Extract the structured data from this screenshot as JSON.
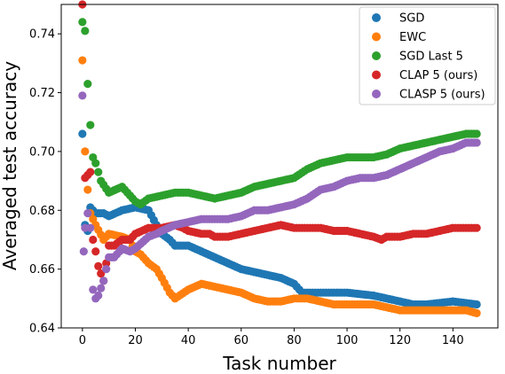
{
  "chart_data": {
    "type": "scatter",
    "title": "",
    "xlabel": "Task number",
    "ylabel": "Averaged test accuracy",
    "xlim": [
      -8,
      157
    ],
    "ylim": [
      0.64,
      0.75
    ],
    "xticks": [
      0,
      20,
      40,
      60,
      80,
      100,
      120,
      140
    ],
    "yticks": [
      0.64,
      0.66,
      0.68,
      0.7,
      0.72,
      0.74
    ],
    "ytick_labels": [
      "0.64",
      "0.66",
      "0.68",
      "0.70",
      "0.72",
      "0.74"
    ],
    "grid": false,
    "legend_position": "top-right",
    "series": [
      {
        "name": "SGD",
        "color": "#1f77b4",
        "keypoints": [
          [
            0,
            0.706
          ],
          [
            1,
            0.675
          ],
          [
            2,
            0.673
          ],
          [
            3,
            0.681
          ],
          [
            5,
            0.679
          ],
          [
            8,
            0.679
          ],
          [
            10,
            0.678
          ],
          [
            15,
            0.68
          ],
          [
            20,
            0.681
          ],
          [
            25,
            0.68
          ],
          [
            28,
            0.675
          ],
          [
            30,
            0.672
          ],
          [
            33,
            0.67
          ],
          [
            35,
            0.668
          ],
          [
            40,
            0.668
          ],
          [
            45,
            0.666
          ],
          [
            50,
            0.664
          ],
          [
            55,
            0.662
          ],
          [
            60,
            0.66
          ],
          [
            65,
            0.659
          ],
          [
            70,
            0.658
          ],
          [
            75,
            0.657
          ],
          [
            80,
            0.655
          ],
          [
            83,
            0.652
          ],
          [
            90,
            0.652
          ],
          [
            100,
            0.652
          ],
          [
            110,
            0.651
          ],
          [
            115,
            0.65
          ],
          [
            120,
            0.649
          ],
          [
            125,
            0.648
          ],
          [
            130,
            0.648
          ],
          [
            140,
            0.649
          ],
          [
            149,
            0.648
          ]
        ]
      },
      {
        "name": "EWC",
        "color": "#ff7f0e",
        "keypoints": [
          [
            0,
            0.731
          ],
          [
            1,
            0.7
          ],
          [
            2,
            0.687
          ],
          [
            3,
            0.679
          ],
          [
            5,
            0.675
          ],
          [
            8,
            0.67
          ],
          [
            10,
            0.672
          ],
          [
            15,
            0.671
          ],
          [
            18,
            0.67
          ],
          [
            20,
            0.666
          ],
          [
            22,
            0.665
          ],
          [
            25,
            0.662
          ],
          [
            28,
            0.66
          ],
          [
            30,
            0.657
          ],
          [
            33,
            0.652
          ],
          [
            35,
            0.65
          ],
          [
            40,
            0.653
          ],
          [
            45,
            0.655
          ],
          [
            50,
            0.654
          ],
          [
            55,
            0.653
          ],
          [
            60,
            0.652
          ],
          [
            65,
            0.65
          ],
          [
            70,
            0.649
          ],
          [
            75,
            0.649
          ],
          [
            80,
            0.65
          ],
          [
            85,
            0.65
          ],
          [
            90,
            0.649
          ],
          [
            95,
            0.648
          ],
          [
            100,
            0.648
          ],
          [
            105,
            0.648
          ],
          [
            110,
            0.648
          ],
          [
            115,
            0.647
          ],
          [
            120,
            0.646
          ],
          [
            125,
            0.646
          ],
          [
            130,
            0.646
          ],
          [
            135,
            0.646
          ],
          [
            140,
            0.646
          ],
          [
            145,
            0.646
          ],
          [
            149,
            0.645
          ]
        ]
      },
      {
        "name": "SGD Last 5",
        "color": "#2ca02c",
        "keypoints": [
          [
            0,
            0.744
          ],
          [
            1,
            0.741
          ],
          [
            2,
            0.723
          ],
          [
            3,
            0.709
          ],
          [
            4,
            0.698
          ],
          [
            5,
            0.696
          ],
          [
            7,
            0.69
          ],
          [
            10,
            0.686
          ],
          [
            15,
            0.688
          ],
          [
            18,
            0.685
          ],
          [
            20,
            0.683
          ],
          [
            22,
            0.682
          ],
          [
            25,
            0.684
          ],
          [
            30,
            0.685
          ],
          [
            35,
            0.686
          ],
          [
            40,
            0.686
          ],
          [
            45,
            0.685
          ],
          [
            50,
            0.684
          ],
          [
            55,
            0.685
          ],
          [
            60,
            0.686
          ],
          [
            65,
            0.688
          ],
          [
            70,
            0.689
          ],
          [
            75,
            0.69
          ],
          [
            80,
            0.691
          ],
          [
            85,
            0.694
          ],
          [
            90,
            0.696
          ],
          [
            95,
            0.697
          ],
          [
            100,
            0.698
          ],
          [
            105,
            0.698
          ],
          [
            110,
            0.698
          ],
          [
            115,
            0.699
          ],
          [
            120,
            0.701
          ],
          [
            125,
            0.702
          ],
          [
            130,
            0.703
          ],
          [
            135,
            0.704
          ],
          [
            140,
            0.705
          ],
          [
            145,
            0.706
          ],
          [
            149,
            0.706
          ]
        ]
      },
      {
        "name": "CLAP 5 (ours)",
        "color": "#d62728",
        "keypoints": [
          [
            0,
            0.75
          ],
          [
            1,
            0.691
          ],
          [
            2,
            0.692
          ],
          [
            3,
            0.693
          ],
          [
            4,
            0.67
          ],
          [
            5,
            0.666
          ],
          [
            6,
            0.661
          ],
          [
            8,
            0.656
          ],
          [
            10,
            0.668
          ],
          [
            12,
            0.668
          ],
          [
            15,
            0.67
          ],
          [
            18,
            0.67
          ],
          [
            20,
            0.672
          ],
          [
            25,
            0.674
          ],
          [
            30,
            0.674
          ],
          [
            35,
            0.675
          ],
          [
            38,
            0.674
          ],
          [
            40,
            0.673
          ],
          [
            45,
            0.672
          ],
          [
            48,
            0.672
          ],
          [
            50,
            0.671
          ],
          [
            55,
            0.671
          ],
          [
            60,
            0.672
          ],
          [
            65,
            0.673
          ],
          [
            70,
            0.674
          ],
          [
            75,
            0.675
          ],
          [
            80,
            0.674
          ],
          [
            85,
            0.674
          ],
          [
            90,
            0.674
          ],
          [
            95,
            0.673
          ],
          [
            100,
            0.673
          ],
          [
            105,
            0.672
          ],
          [
            110,
            0.671
          ],
          [
            113,
            0.67
          ],
          [
            115,
            0.671
          ],
          [
            120,
            0.671
          ],
          [
            125,
            0.672
          ],
          [
            130,
            0.672
          ],
          [
            135,
            0.673
          ],
          [
            140,
            0.674
          ],
          [
            145,
            0.674
          ],
          [
            149,
            0.674
          ]
        ]
      },
      {
        "name": "CLASP 5 (ours)",
        "color": "#9467bd",
        "keypoints": [
          [
            0,
            0.719
          ],
          [
            0.5,
            0.666
          ],
          [
            1,
            0.674
          ],
          [
            2,
            0.679
          ],
          [
            3,
            0.674
          ],
          [
            4,
            0.653
          ],
          [
            5,
            0.65
          ],
          [
            6,
            0.651
          ],
          [
            8,
            0.656
          ],
          [
            10,
            0.664
          ],
          [
            12,
            0.664
          ],
          [
            15,
            0.667
          ],
          [
            18,
            0.666
          ],
          [
            20,
            0.667
          ],
          [
            25,
            0.671
          ],
          [
            28,
            0.672
          ],
          [
            30,
            0.673
          ],
          [
            35,
            0.675
          ],
          [
            40,
            0.676
          ],
          [
            45,
            0.677
          ],
          [
            50,
            0.677
          ],
          [
            55,
            0.677
          ],
          [
            60,
            0.678
          ],
          [
            65,
            0.68
          ],
          [
            70,
            0.68
          ],
          [
            75,
            0.681
          ],
          [
            80,
            0.682
          ],
          [
            85,
            0.684
          ],
          [
            90,
            0.687
          ],
          [
            95,
            0.688
          ],
          [
            100,
            0.69
          ],
          [
            105,
            0.691
          ],
          [
            110,
            0.691
          ],
          [
            115,
            0.692
          ],
          [
            120,
            0.694
          ],
          [
            125,
            0.696
          ],
          [
            130,
            0.698
          ],
          [
            135,
            0.7
          ],
          [
            140,
            0.701
          ],
          [
            145,
            0.703
          ],
          [
            149,
            0.703
          ]
        ]
      }
    ]
  }
}
